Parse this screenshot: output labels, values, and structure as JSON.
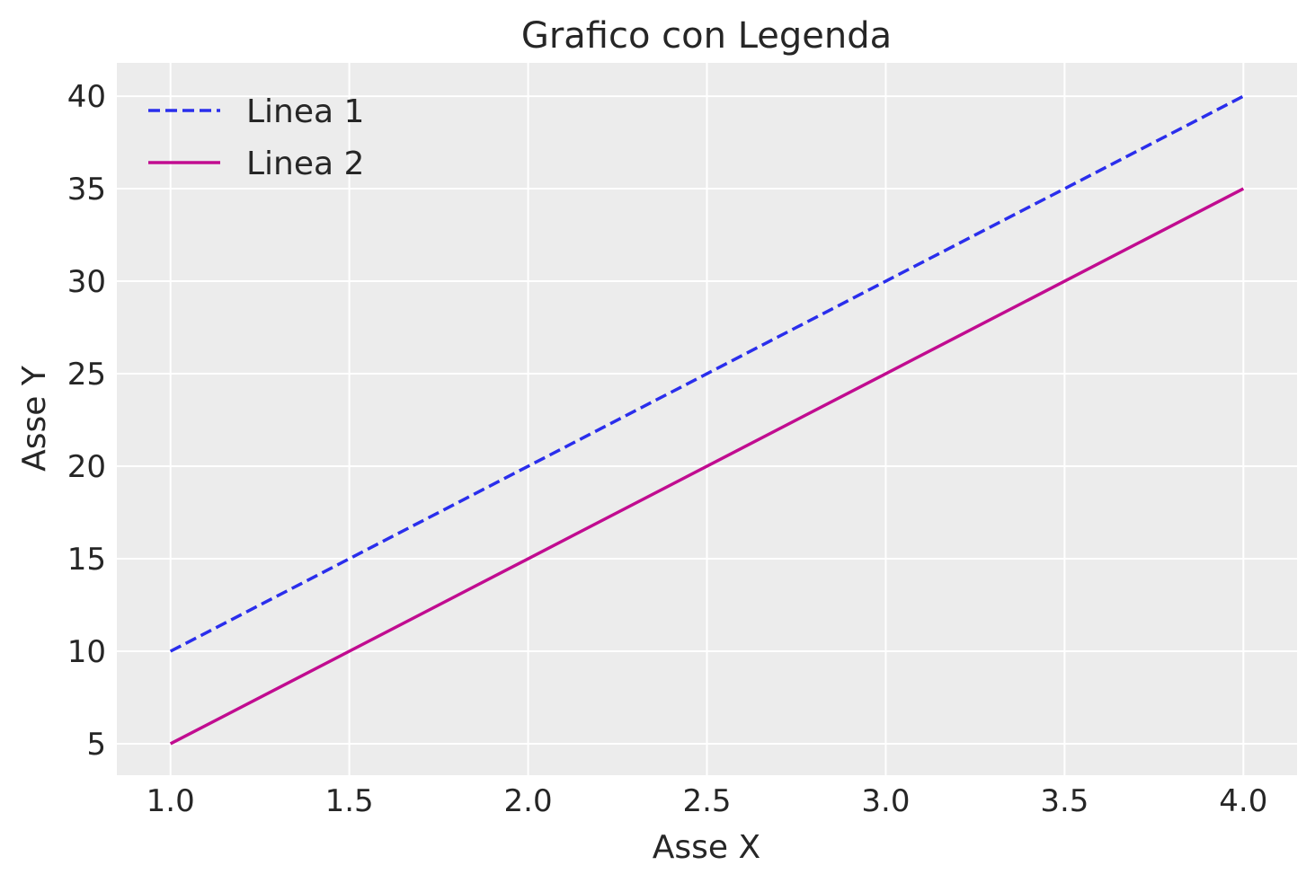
{
  "chart_data": {
    "type": "line",
    "title": "Grafico con Legenda",
    "xlabel": "Asse X",
    "ylabel": "Asse Y",
    "xlim": [
      0.85,
      4.15
    ],
    "ylim": [
      3.3,
      41.8
    ],
    "xticks": [
      1.0,
      1.5,
      2.0,
      2.5,
      3.0,
      3.5,
      4.0
    ],
    "xtick_labels": [
      "1.0",
      "1.5",
      "2.0",
      "2.5",
      "3.0",
      "3.5",
      "4.0"
    ],
    "yticks": [
      5,
      10,
      15,
      20,
      25,
      30,
      35,
      40
    ],
    "ytick_labels": [
      "5",
      "10",
      "15",
      "20",
      "25",
      "30",
      "35",
      "40"
    ],
    "grid": true,
    "legend_position": "upper-left",
    "background": "#ececec",
    "series": [
      {
        "name": "Linea 1",
        "x": [
          1,
          2,
          3,
          4
        ],
        "y": [
          10,
          20,
          30,
          40
        ],
        "color": "#2a2eec",
        "style": "dashed"
      },
      {
        "name": "Linea 2",
        "x": [
          1,
          2,
          3,
          4
        ],
        "y": [
          5,
          15,
          25,
          35
        ],
        "color": "#c10c90",
        "style": "solid"
      }
    ]
  }
}
